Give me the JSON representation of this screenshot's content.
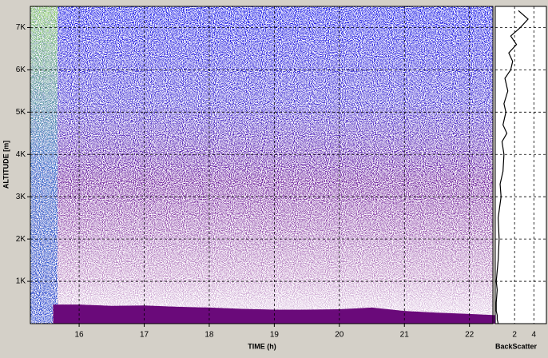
{
  "chart_data": {
    "type": "ceilogram",
    "x_label": "TIME (h)",
    "y_label": "ALTITUDE [m]",
    "xlim": [
      15.25,
      22.36
    ],
    "xticks": [
      16,
      17,
      18,
      19,
      20,
      21,
      22
    ],
    "ylim": [
      0,
      7500
    ],
    "yticks": [
      {
        "value": 1000,
        "label": "1K"
      },
      {
        "value": 2000,
        "label": "2K"
      },
      {
        "value": 3000,
        "label": "3K"
      },
      {
        "value": 4000,
        "label": "4K"
      },
      {
        "value": 5000,
        "label": "5K"
      },
      {
        "value": 6000,
        "label": "6K"
      },
      {
        "value": 7000,
        "label": "7K"
      }
    ],
    "grid": true,
    "layer": {
      "color": "#6a0a7a",
      "x": [
        15.6,
        16,
        16.5,
        17,
        17.5,
        18,
        18.5,
        19,
        19.5,
        20,
        20.5,
        21,
        21.5,
        22,
        22.4
      ],
      "values": [
        450,
        450,
        420,
        430,
        400,
        380,
        350,
        330,
        330,
        340,
        380,
        300,
        260,
        230,
        200
      ]
    },
    "profile": {
      "x_label": "BackScatter",
      "xlim": [
        0,
        5.3
      ],
      "xticks": [
        2,
        4
      ],
      "color": "#000000",
      "altitudes": [
        0,
        100,
        200,
        300,
        500,
        800,
        1000,
        1500,
        2000,
        2500,
        3000,
        3300,
        3600,
        4000,
        4300,
        4500,
        4700,
        5000,
        5200,
        5500,
        5800,
        6000,
        6200,
        6400,
        6600,
        6800,
        7000,
        7200,
        7400
      ],
      "values": [
        0.3,
        0.2,
        0.2,
        0.1,
        0.1,
        0.2,
        0.1,
        0.3,
        0.4,
        0.3,
        0.6,
        0.5,
        0.8,
        0.9,
        0.7,
        1.2,
        0.8,
        1.1,
        0.9,
        1.3,
        1.0,
        1.6,
        1.8,
        1.4,
        2.2,
        1.6,
        2.6,
        3.4,
        2.4
      ]
    }
  }
}
